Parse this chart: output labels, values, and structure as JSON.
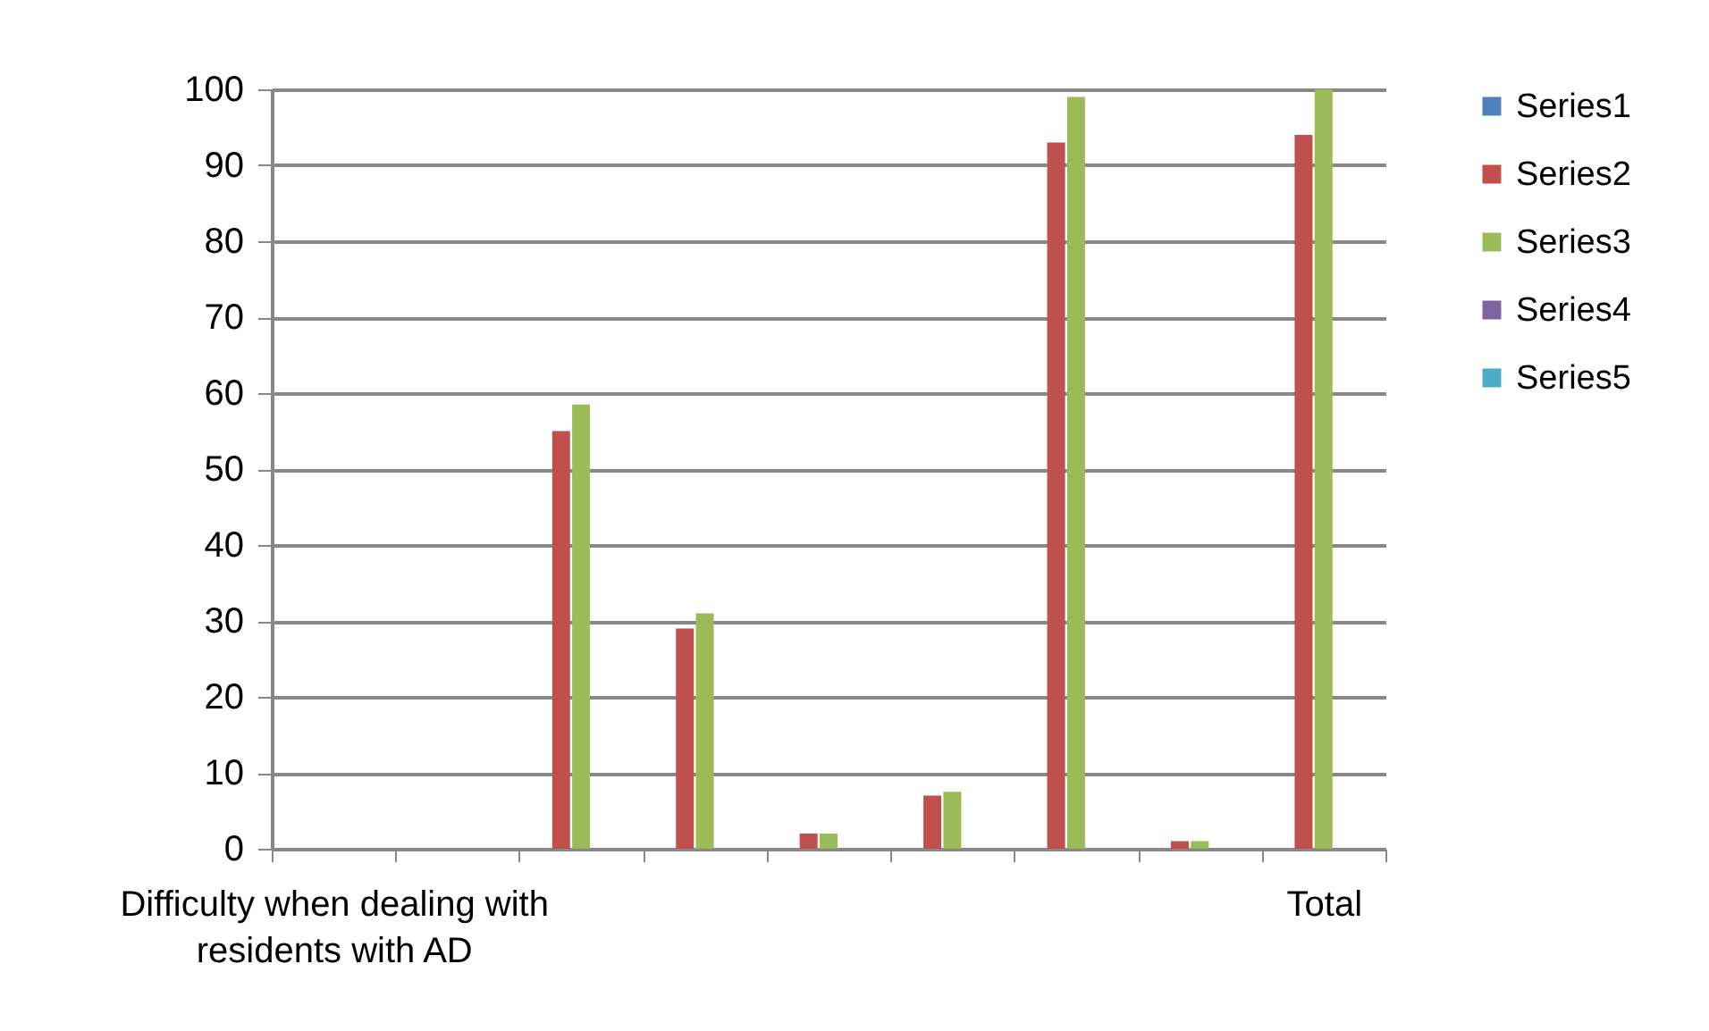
{
  "chart_data": {
    "type": "bar",
    "categories": [
      "Difficulty when dealing with residents with AD",
      null,
      null,
      null,
      null,
      null,
      null,
      null,
      "Total"
    ],
    "series": [
      {
        "name": "Series1",
        "color": "#4f81bd",
        "values": [
          null,
          null,
          0,
          0,
          0,
          0,
          0,
          0,
          null
        ]
      },
      {
        "name": "Series2",
        "color": "#c0504d",
        "values": [
          null,
          0,
          55,
          29,
          2,
          7,
          93,
          1,
          94
        ]
      },
      {
        "name": "Series3",
        "color": "#9bbb59",
        "values": [
          null,
          0,
          58.5,
          31,
          2,
          7.5,
          99,
          1,
          100
        ]
      },
      {
        "name": "Series4",
        "color": "#8064a2",
        "values": [
          null,
          null,
          null,
          null,
          null,
          null,
          null,
          null,
          null
        ]
      },
      {
        "name": "Series5",
        "color": "#4bacc6",
        "values": [
          null,
          null,
          null,
          null,
          null,
          null,
          null,
          null,
          null
        ]
      }
    ],
    "ylim": [
      0,
      100
    ],
    "yticks": [
      0,
      10,
      20,
      30,
      40,
      50,
      60,
      70,
      80,
      90,
      100
    ],
    "grid": "y",
    "legend": "right"
  }
}
